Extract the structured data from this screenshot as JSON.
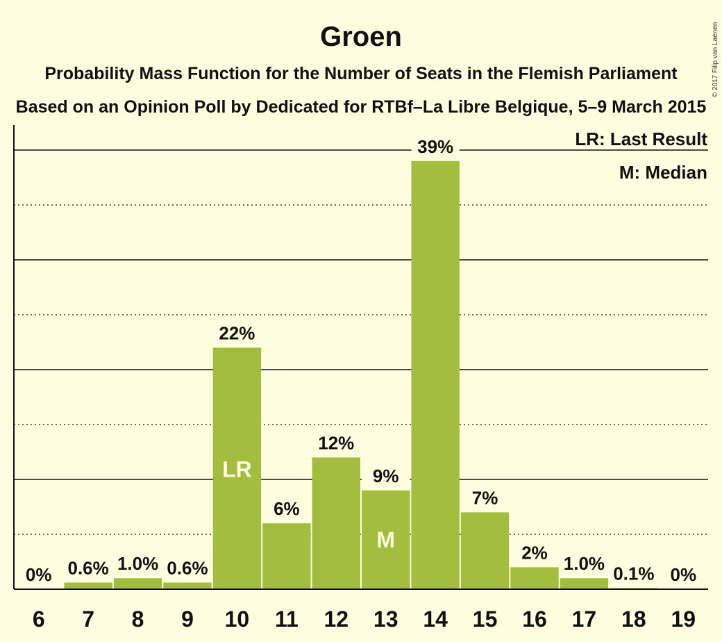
{
  "chart_data": {
    "type": "bar",
    "title": "Groen",
    "subtitle": "Probability Mass Function for the Number of Seats in the Flemish Parliament",
    "subtitle2": "Based on an Opinion Poll by Dedicated for RTBf–La Libre Belgique, 5–9 March 2015",
    "copyright": "© 2017 Filip van Laenen",
    "legend": {
      "placement": "top-right",
      "last_result": "LR: Last Result",
      "median": "M: Median"
    },
    "categories": [
      "6",
      "7",
      "8",
      "9",
      "10",
      "11",
      "12",
      "13",
      "14",
      "15",
      "16",
      "17",
      "18",
      "19"
    ],
    "values": [
      0,
      0.6,
      1.0,
      0.6,
      22,
      6,
      12,
      9,
      39,
      7,
      2,
      1.0,
      0.1,
      0
    ],
    "labels": [
      "0%",
      "0.6%",
      "1.0%",
      "0.6%",
      "22%",
      "6%",
      "12%",
      "9%",
      "39%",
      "7%",
      "2%",
      "1.0%",
      "0.1%",
      "0%"
    ],
    "last_result": {
      "category": "10",
      "marker": "LR"
    },
    "median": {
      "category": "13",
      "marker": "M"
    },
    "ylim": [
      0,
      42
    ],
    "grid": {
      "solid_every": 10,
      "dotted_every": 5
    },
    "bar_color": "#a3be3f"
  }
}
